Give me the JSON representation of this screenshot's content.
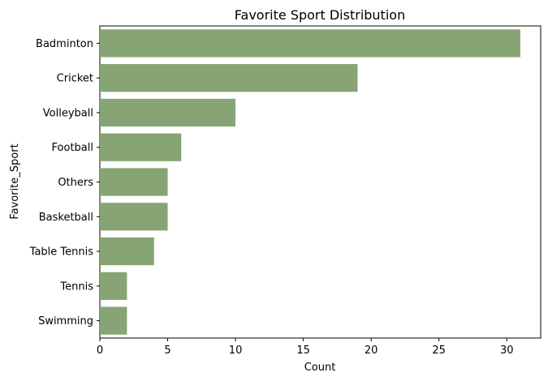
{
  "chart_data": {
    "type": "bar",
    "orientation": "horizontal",
    "title": "Favorite Sport Distribution",
    "xlabel": "Count",
    "ylabel": "Favorite_Sport",
    "categories": [
      "Badminton",
      "Cricket",
      "Volleyball",
      "Football",
      "Others",
      "Basketball",
      "Table Tennis",
      "Tennis",
      "Swimming"
    ],
    "values": [
      31,
      19,
      10,
      6,
      5,
      5,
      4,
      2,
      2
    ],
    "xlim": [
      0,
      32.5
    ],
    "xticks": [
      0,
      5,
      10,
      15,
      20,
      25,
      30
    ],
    "grid": false,
    "bar_color": "#87a474"
  }
}
